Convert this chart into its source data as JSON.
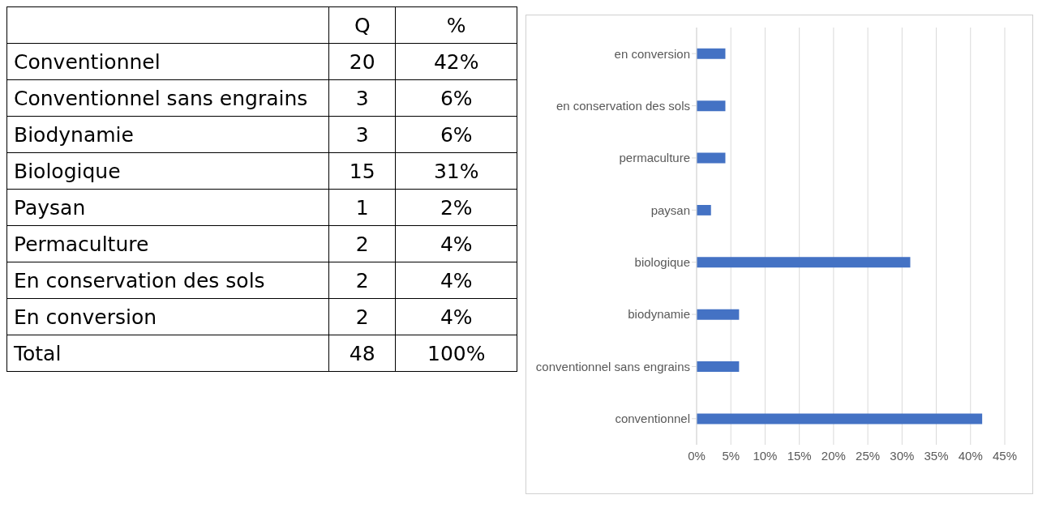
{
  "chart_data": [
    {
      "type": "other",
      "categories": [
        "Conventionnel",
        "Conventionnel sans engrains",
        "Biodynamie",
        "Biologique",
        "Paysan",
        "Permaculture",
        "En conservation des sols",
        "En conversion",
        "Total"
      ],
      "series": [
        {
          "name": "Q",
          "values": [
            20,
            3,
            3,
            15,
            1,
            2,
            2,
            2,
            48
          ]
        },
        {
          "name": "%",
          "values": [
            42,
            6,
            6,
            31,
            2,
            4,
            4,
            4,
            100
          ],
          "value_labels": [
            "42%",
            "6%",
            "6%",
            "31%",
            "2%",
            "4%",
            "4%",
            "4%",
            "100%"
          ]
        }
      ],
      "data_labels": true
    },
    {
      "type": "bar",
      "orientation": "horizontal",
      "categories": [
        "en conversion",
        "en conservation des sols",
        "permaculture",
        "paysan",
        "biologique",
        "biodynamie",
        "conventionnel sans engrains",
        "conventionnel"
      ],
      "values": [
        4.2,
        4.2,
        4.2,
        2.1,
        31.2,
        6.2,
        6.2,
        41.7
      ],
      "color": "#4472c4",
      "xlim": [
        0,
        45
      ],
      "xticks": [
        {
          "value": 0,
          "label": "0%"
        },
        {
          "value": 5,
          "label": "5%"
        },
        {
          "value": 10,
          "label": "10%"
        },
        {
          "value": 15,
          "label": "15%"
        },
        {
          "value": 20,
          "label": "20%"
        },
        {
          "value": 25,
          "label": "25%"
        },
        {
          "value": 30,
          "label": "30%"
        },
        {
          "value": 35,
          "label": "35%"
        },
        {
          "value": 40,
          "label": "40%"
        },
        {
          "value": 45,
          "label": "45%"
        }
      ],
      "grid": "x"
    }
  ]
}
